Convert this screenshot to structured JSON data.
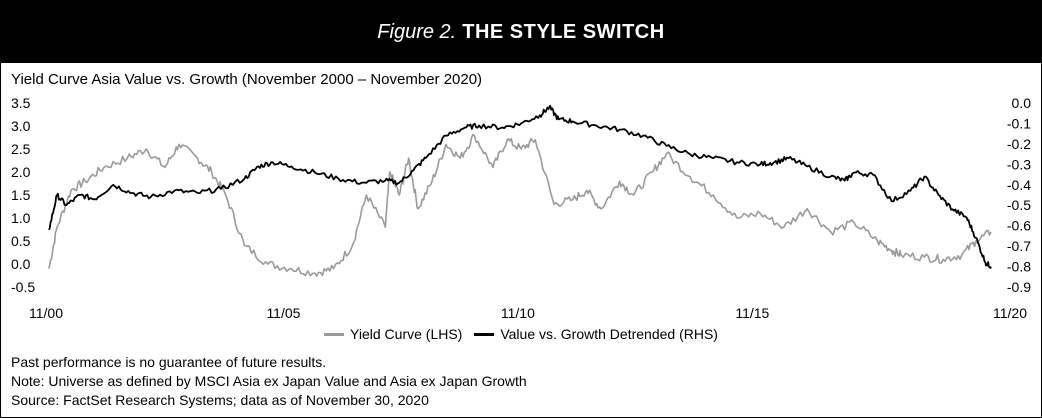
{
  "figure": {
    "label": "Figure 2.",
    "title": "THE STYLE SWITCH"
  },
  "colors": {
    "banner_bg": "#000000",
    "yield_curve": "#9a9a9a",
    "value_growth": "#000000"
  },
  "chart_data": {
    "type": "line",
    "title": "Yield Curve Asia Value vs. Growth (November 2000 – November 2020)",
    "x_tick_labels": [
      "11/00",
      "11/05",
      "11/10",
      "11/15",
      "11/20"
    ],
    "x_range": [
      2000.83,
      2020.92
    ],
    "y_left": {
      "ylim": [
        -0.5,
        3.5
      ],
      "ticks": [
        "3.5",
        "3.0",
        "2.5",
        "2.0",
        "1.5",
        "1.0",
        "0.5",
        "0.0",
        "-0.5"
      ]
    },
    "y_right": {
      "ylim": [
        -0.9,
        0.0
      ],
      "ticks": [
        "0.0",
        "-0.1",
        "-0.2",
        "-0.3",
        "-0.4",
        "-0.5",
        "-0.6",
        "-0.7",
        "-0.8",
        "-0.9"
      ]
    },
    "legend_position": "bottom-center",
    "series": [
      {
        "name": "Yield Curve (LHS)",
        "axis": "left",
        "x": [
          2000.83,
          2001.0,
          2001.3,
          2001.6,
          2002.0,
          2002.5,
          2002.9,
          2003.3,
          2003.6,
          2004.0,
          2004.3,
          2004.6,
          2005.0,
          2005.5,
          2006.0,
          2006.5,
          2006.9,
          2007.3,
          2007.6,
          2008.0,
          2008.1,
          2008.3,
          2008.5,
          2008.7,
          2009.0,
          2009.3,
          2009.6,
          2009.9,
          2010.3,
          2010.6,
          2010.9,
          2011.2,
          2011.6,
          2012.0,
          2012.3,
          2012.6,
          2013.0,
          2013.3,
          2013.7,
          2014.0,
          2014.5,
          2015.0,
          2015.5,
          2016.0,
          2016.5,
          2017.0,
          2017.5,
          2018.0,
          2018.5,
          2018.8,
          2019.0,
          2019.5,
          2019.9,
          2020.3,
          2020.6,
          2020.92
        ],
        "values": [
          -0.1,
          0.8,
          1.6,
          1.8,
          2.1,
          2.3,
          2.5,
          2.1,
          2.6,
          2.3,
          2.0,
          1.5,
          0.4,
          0.0,
          -0.1,
          -0.2,
          -0.1,
          0.4,
          1.5,
          0.8,
          2.0,
          1.5,
          2.3,
          1.2,
          1.8,
          2.6,
          2.3,
          2.8,
          2.1,
          2.7,
          2.5,
          2.7,
          1.3,
          1.4,
          1.6,
          1.2,
          1.8,
          1.5,
          2.0,
          2.4,
          1.9,
          1.5,
          1.0,
          1.1,
          0.8,
          1.2,
          0.7,
          0.9,
          0.5,
          0.3,
          0.2,
          0.15,
          0.1,
          0.2,
          0.5,
          0.7
        ]
      },
      {
        "name": "Value vs. Growth Detrended (RHS)",
        "axis": "right",
        "x": [
          2000.83,
          2001.0,
          2001.2,
          2001.5,
          2001.8,
          2002.2,
          2002.6,
          2003.0,
          2003.5,
          2004.0,
          2004.5,
          2005.0,
          2005.3,
          2005.6,
          2006.0,
          2006.5,
          2007.0,
          2007.5,
          2008.0,
          2008.3,
          2008.6,
          2008.9,
          2009.3,
          2009.7,
          2010.0,
          2010.5,
          2010.9,
          2011.3,
          2011.5,
          2011.7,
          2012.0,
          2012.5,
          2013.0,
          2013.5,
          2014.0,
          2014.5,
          2015.0,
          2015.5,
          2016.0,
          2016.3,
          2016.6,
          2017.0,
          2017.5,
          2017.8,
          2018.0,
          2018.4,
          2018.8,
          2019.2,
          2019.5,
          2019.8,
          2020.1,
          2020.4,
          2020.6,
          2020.8,
          2020.92
        ],
        "values": [
          -0.62,
          -0.45,
          -0.5,
          -0.45,
          -0.47,
          -0.4,
          -0.44,
          -0.46,
          -0.43,
          -0.44,
          -0.42,
          -0.37,
          -0.31,
          -0.29,
          -0.31,
          -0.34,
          -0.37,
          -0.39,
          -0.38,
          -0.39,
          -0.33,
          -0.26,
          -0.16,
          -0.12,
          -0.11,
          -0.12,
          -0.1,
          -0.06,
          -0.02,
          -0.08,
          -0.09,
          -0.11,
          -0.13,
          -0.16,
          -0.21,
          -0.25,
          -0.27,
          -0.29,
          -0.3,
          -0.29,
          -0.27,
          -0.31,
          -0.36,
          -0.38,
          -0.34,
          -0.35,
          -0.48,
          -0.43,
          -0.36,
          -0.45,
          -0.52,
          -0.56,
          -0.66,
          -0.78,
          -0.8
        ]
      }
    ]
  },
  "notes": [
    "Past performance is no guarantee of future results.",
    "Note: Universe as defined by MSCI Asia ex Japan Value and Asia ex Japan Growth",
    "Source: FactSet Research Systems; data as of November 30, 2020"
  ]
}
